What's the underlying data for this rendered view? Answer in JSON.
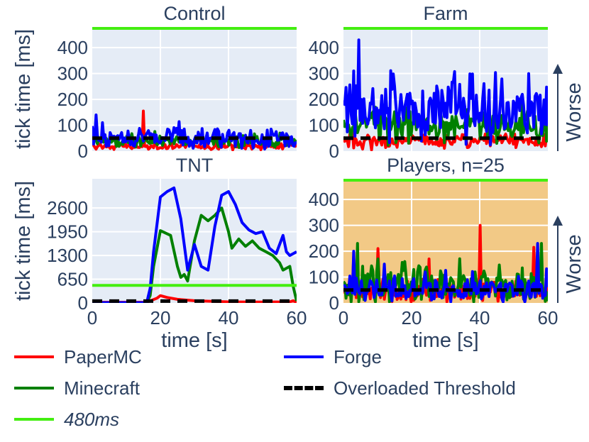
{
  "figure": {
    "worse_label": "Worse"
  },
  "colors": {
    "papermc": "#ff0000",
    "minecraft": "#008000",
    "forge": "#0000ff",
    "threshold": "#000000",
    "limit480": "#44ee11",
    "plot_bg": "#e5ecf6",
    "players_bg": "#f2c986",
    "grid": "#ffffff"
  },
  "legend": {
    "papermc": "PaperMC",
    "forge": "Forge",
    "minecraft": "Minecraft",
    "threshold": "Overloaded Threshold",
    "limit": "480ms"
  },
  "chart_data": [
    {
      "type": "line",
      "title": "Control",
      "xlabel": "",
      "ylabel": "tick time [ms]",
      "xlim": [
        0,
        60
      ],
      "ylim": [
        0,
        480
      ],
      "yticks": [
        0,
        100,
        200,
        300,
        400
      ],
      "xticks": [],
      "ytick_labels": [
        "0",
        "100",
        "200",
        "300",
        "400"
      ],
      "limit_line": 480,
      "threshold": 50,
      "show_worse": false,
      "background": "plot_bg",
      "series": [
        {
          "name": "PaperMC",
          "base": 18,
          "amp": 12,
          "spikes": [
            [
              15,
              155
            ]
          ]
        },
        {
          "name": "Minecraft",
          "base": 38,
          "amp": 20,
          "spikes": [
            [
              55,
              70
            ]
          ]
        },
        {
          "name": "Forge",
          "base": 50,
          "amp": 32,
          "spikes": [
            [
              1,
              140
            ],
            [
              3,
              110
            ]
          ]
        }
      ]
    },
    {
      "type": "line",
      "title": "Farm",
      "xlabel": "",
      "ylabel": "",
      "xlim": [
        0,
        60
      ],
      "ylim": [
        0,
        480
      ],
      "yticks": [
        0,
        100,
        200,
        300,
        400
      ],
      "xticks": [],
      "ytick_labels": [
        "0",
        "100",
        "200",
        "300",
        "400"
      ],
      "limit_line": 480,
      "threshold": 50,
      "show_worse": true,
      "background": "plot_bg",
      "series": [
        {
          "name": "PaperMC",
          "base": 38,
          "amp": 25,
          "spikes": []
        },
        {
          "name": "Minecraft",
          "base": 100,
          "amp": 60,
          "spikes": []
        },
        {
          "name": "Forge",
          "base": 160,
          "amp": 120,
          "spikes": [
            [
              4.5,
              430
            ],
            [
              3,
              310
            ]
          ]
        }
      ]
    },
    {
      "type": "line",
      "title": "TNT",
      "xlabel": "time [s]",
      "ylabel": "tick time [ms]",
      "xlim": [
        0,
        60
      ],
      "ylim": [
        0,
        3400
      ],
      "yticks": [
        0,
        650,
        1300,
        1950,
        2600
      ],
      "xticks": [
        0,
        20,
        40,
        60
      ],
      "ytick_labels": [
        "0",
        "650",
        "1300",
        "1950",
        "2600"
      ],
      "xtick_labels": [
        "0",
        "20",
        "40",
        "60"
      ],
      "limit_line": 480,
      "threshold": 50,
      "show_worse": false,
      "background": "plot_bg",
      "series": [
        {
          "name": "PaperMC",
          "points": [
            [
              0,
              20
            ],
            [
              16,
              20
            ],
            [
              19,
              130
            ],
            [
              20,
              200
            ],
            [
              22,
              150
            ],
            [
              25,
              100
            ],
            [
              30,
              60
            ],
            [
              40,
              30
            ],
            [
              50,
              25
            ],
            [
              58,
              30
            ],
            [
              59,
              60
            ],
            [
              60,
              10
            ]
          ]
        },
        {
          "name": "Minecraft",
          "points": [
            [
              0,
              10
            ],
            [
              16,
              10
            ],
            [
              17,
              200
            ],
            [
              18,
              1000
            ],
            [
              20,
              1980
            ],
            [
              23,
              1850
            ],
            [
              25,
              1000
            ],
            [
              26,
              700
            ],
            [
              27,
              780
            ],
            [
              28,
              600
            ],
            [
              30,
              1700
            ],
            [
              32,
              2400
            ],
            [
              34,
              2250
            ],
            [
              36,
              2400
            ],
            [
              38,
              2600
            ],
            [
              40,
              1950
            ],
            [
              41,
              1500
            ],
            [
              43,
              1750
            ],
            [
              45,
              1550
            ],
            [
              47,
              1700
            ],
            [
              49,
              1500
            ],
            [
              51,
              1400
            ],
            [
              53,
              1300
            ],
            [
              55,
              1100
            ],
            [
              56,
              900
            ],
            [
              58,
              1000
            ],
            [
              59,
              450
            ],
            [
              60,
              50
            ]
          ]
        },
        {
          "name": "Forge",
          "points": [
            [
              0,
              10
            ],
            [
              16,
              10
            ],
            [
              17,
              400
            ],
            [
              18,
              1400
            ],
            [
              20,
              2900
            ],
            [
              22,
              3050
            ],
            [
              24,
              3150
            ],
            [
              26,
              2300
            ],
            [
              28,
              900
            ],
            [
              30,
              1600
            ],
            [
              32,
              1000
            ],
            [
              34,
              900
            ],
            [
              36,
              2100
            ],
            [
              38,
              2950
            ],
            [
              40,
              3050
            ],
            [
              42,
              2700
            ],
            [
              44,
              2200
            ],
            [
              46,
              2000
            ],
            [
              48,
              1900
            ],
            [
              50,
              1950
            ],
            [
              52,
              1500
            ],
            [
              54,
              1350
            ],
            [
              56,
              1850
            ],
            [
              57,
              1400
            ],
            [
              58,
              1300
            ],
            [
              60,
              1400
            ]
          ]
        }
      ]
    },
    {
      "type": "line",
      "title": "Players, n=25",
      "xlabel": "time [s]",
      "ylabel": "",
      "xlim": [
        0,
        60
      ],
      "ylim": [
        0,
        480
      ],
      "yticks": [
        0,
        100,
        200,
        300,
        400
      ],
      "xticks": [
        0,
        20,
        40,
        60
      ],
      "ytick_labels": [
        "0",
        "100",
        "200",
        "300",
        "400"
      ],
      "xtick_labels": [
        "0",
        "20",
        "40",
        "60"
      ],
      "limit_line": 480,
      "threshold": 50,
      "show_worse": true,
      "background": "players_bg",
      "series": [
        {
          "name": "PaperMC",
          "base": 45,
          "amp": 40,
          "spikes": [
            [
              40,
              300
            ],
            [
              56,
              215
            ],
            [
              25,
              170
            ],
            [
              10,
              210
            ],
            [
              3,
              180
            ]
          ]
        },
        {
          "name": "Minecraft",
          "base": 65,
          "amp": 60,
          "spikes": [
            [
              4,
              230
            ],
            [
              58,
              230
            ],
            [
              10,
              170
            ],
            [
              18,
              160
            ]
          ]
        },
        {
          "name": "Forge",
          "base": 55,
          "amp": 45,
          "spikes": [
            [
              3,
              200
            ],
            [
              57,
              230
            ],
            [
              12,
              150
            ],
            [
              24,
              120
            ]
          ]
        }
      ]
    }
  ]
}
